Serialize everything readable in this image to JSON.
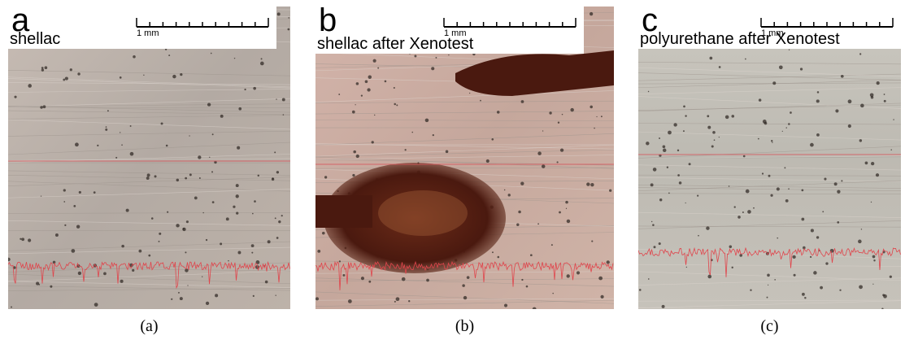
{
  "panels": [
    {
      "letter": "a",
      "label": "shellac",
      "scale": "1 mm",
      "caption": "(a)"
    },
    {
      "letter": "b",
      "label": "shellac after Xenotest",
      "scale": "1 mm",
      "caption": "(b)"
    },
    {
      "letter": "c",
      "label": "polyurethane after Xenotest",
      "scale": "1 mm",
      "caption": "(c)"
    }
  ]
}
